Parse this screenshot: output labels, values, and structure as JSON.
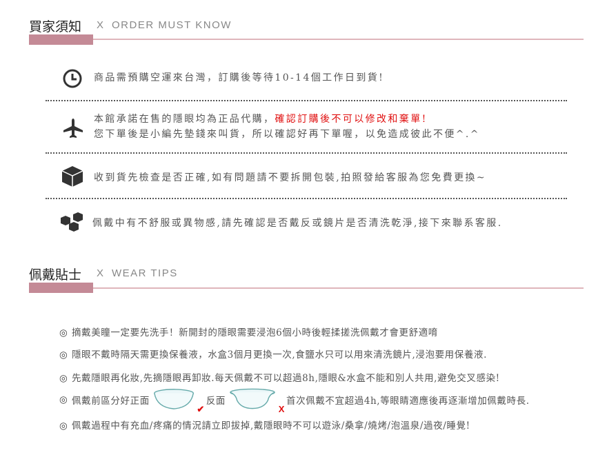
{
  "section1": {
    "title": "買家須知",
    "separator": "X",
    "subtitle": "ORDER MUST KNOW"
  },
  "notices": [
    {
      "icon": "clock-icon",
      "lines": [
        "商品需預購空運來台灣，訂購後等待10-14個工作日到貨!"
      ]
    },
    {
      "icon": "airplane-icon",
      "line1": "本館承諾在售的隱眼均為正品代購，",
      "line1_red": "確認訂購後不可以修改和棄單!",
      "line2": "您下單後是小編先墊錢來叫貨，所以確認好再下單喔，以免造成彼此不便^.^"
    },
    {
      "icon": "box-icon",
      "lines": [
        "收到貨先檢查是否正確,如有問題請不要拆開包裝,拍照發給客服為您免費更換~"
      ]
    },
    {
      "icon": "cubes-icon",
      "lines": [
        "佩戴中有不舒服或異物感,請先確認是否戴反或鏡片是否清洗乾淨,接下來聯系客服."
      ]
    }
  ],
  "section2": {
    "title": "佩戴貼士",
    "separator": "X",
    "subtitle": "WEAR TIPS"
  },
  "tips": {
    "bullet": "◎",
    "items": [
      "摘戴美瞳一定要先洗手！新開封的隱眼需要浸泡6個小時後輕揉搓洗佩戴才會更舒適唷",
      "隱眼不戴時隔天需更換保養液，水盒3個月更換一次,食鹽水只可以用來清洗鏡片,浸泡要用保養液.",
      "先戴隱眼再化妝,先摘隱眼再卸妝.每天佩戴不可以超過8h,隱眼&水盒不能和別人共用,避免交叉感染!"
    ],
    "item4": {
      "part1": "佩戴前區分好正面",
      "part2": "反面",
      "part3": "首次佩戴不宜超過4h,等眼睛適應後再逐漸增加佩戴時長.",
      "correct_mark": "✔",
      "wrong_mark": "X"
    },
    "item5": "佩戴過程中有充血/疼痛的情況請立即拔掉,戴隱眼時不可以遊泳/桑拿/燒烤/泡溫泉/過夜/睡覺!"
  },
  "colors": {
    "accent_bar": "#c48a96",
    "divider": "#dfb5bb",
    "warning": "#e01010"
  }
}
